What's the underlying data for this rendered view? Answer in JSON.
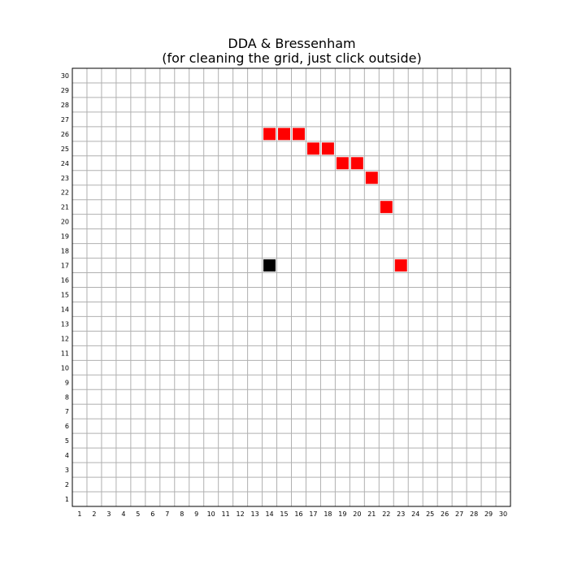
{
  "window": {
    "title_line1": "DDA & Bressenham",
    "title_line2": "(for cleaning the grid, just click outside)"
  },
  "grid": {
    "columns": 30,
    "rows": 30,
    "line_color": "#b0b0b0",
    "border_color": "#000000",
    "background": "#ffffff"
  },
  "pixels": {
    "fill_color": "#ff0000",
    "marker_color": "#000000",
    "red_cells": [
      {
        "x": 14,
        "y": 26
      },
      {
        "x": 15,
        "y": 26
      },
      {
        "x": 16,
        "y": 26
      },
      {
        "x": 17,
        "y": 25
      },
      {
        "x": 18,
        "y": 25
      },
      {
        "x": 19,
        "y": 24
      },
      {
        "x": 20,
        "y": 24
      },
      {
        "x": 21,
        "y": 23
      },
      {
        "x": 22,
        "y": 21
      },
      {
        "x": 23,
        "y": 17
      }
    ],
    "black_cells": [
      {
        "x": 14,
        "y": 17
      }
    ]
  },
  "axes": {
    "x_ticks": [
      "1",
      "2",
      "3",
      "4",
      "5",
      "6",
      "7",
      "8",
      "9",
      "10",
      "11",
      "12",
      "13",
      "14",
      "15",
      "16",
      "17",
      "18",
      "19",
      "20",
      "21",
      "22",
      "23",
      "24",
      "25",
      "26",
      "27",
      "28",
      "29",
      "30"
    ],
    "y_ticks": [
      "1",
      "2",
      "3",
      "4",
      "5",
      "6",
      "7",
      "8",
      "9",
      "10",
      "11",
      "12",
      "13",
      "14",
      "15",
      "16",
      "17",
      "18",
      "19",
      "20",
      "21",
      "22",
      "23",
      "24",
      "25",
      "26",
      "27",
      "28",
      "29",
      "30"
    ]
  }
}
